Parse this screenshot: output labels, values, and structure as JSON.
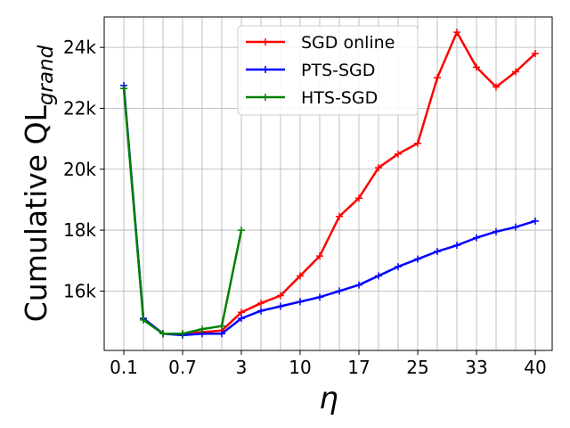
{
  "chart_data": {
    "type": "line",
    "ylabel": "Cumulative QL",
    "ylabel_sub": "grand",
    "xlabel": "η",
    "x_tick_labels": [
      "0.1",
      "0.7",
      "3",
      "10",
      "17",
      "25",
      "33",
      "40"
    ],
    "y_tick_labels": [
      "16k",
      "18k",
      "20k",
      "22k",
      "24k"
    ],
    "y_ticks": [
      16000,
      18000,
      20000,
      22000,
      24000
    ],
    "ylim": [
      14050,
      25000
    ],
    "grid": true,
    "legend_position": "top-center",
    "series": [
      {
        "name": "SGD online",
        "color": "#ff0000",
        "values": [
          null,
          15100,
          14600,
          14600,
          14650,
          14700,
          15300,
          15600,
          15850,
          16500,
          17150,
          18450,
          19050,
          20050,
          20500,
          20850,
          23000,
          24500,
          23350,
          22700,
          23200,
          23800
        ]
      },
      {
        "name": "PTS-SGD",
        "color": "#0000ff",
        "values": [
          22750,
          15100,
          14600,
          14550,
          14600,
          14600,
          15100,
          15350,
          15500,
          15650,
          15800,
          16000,
          16200,
          16500,
          16800,
          17050,
          17300,
          17500,
          17750,
          17950,
          18100,
          18300
        ]
      },
      {
        "name": "HTS-SGD",
        "color": "#008000",
        "values": [
          22650,
          15050,
          14600,
          14600,
          14750,
          14850,
          18000
        ]
      }
    ]
  }
}
